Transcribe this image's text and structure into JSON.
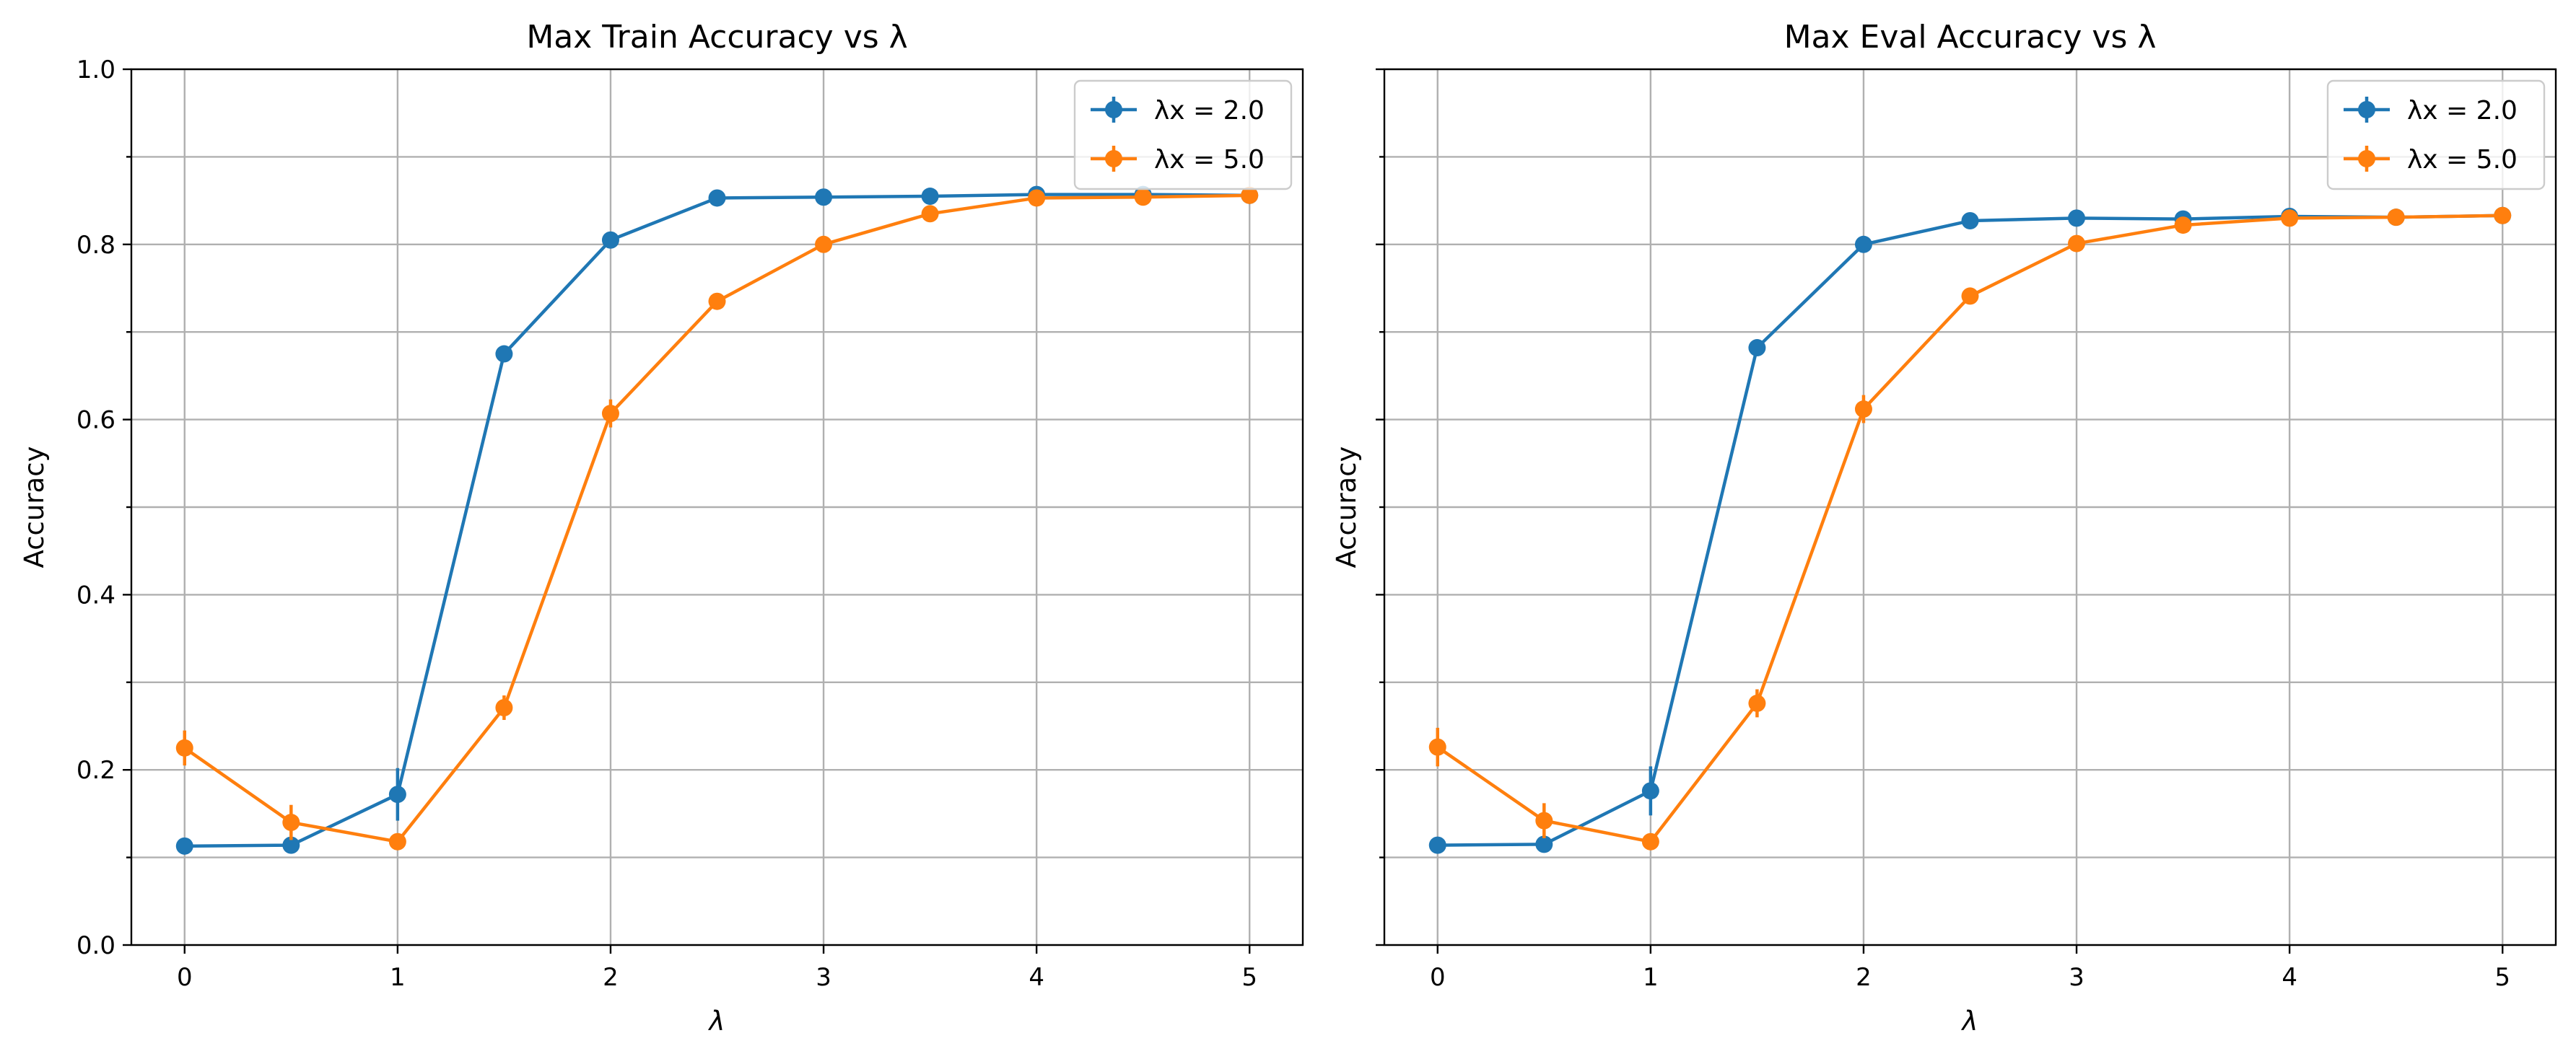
{
  "chart_data": [
    {
      "type": "line",
      "title": "Max Train Accuracy vs λ",
      "xlabel": "λ",
      "ylabel": "Accuracy",
      "xlim": [
        -0.25,
        5.25
      ],
      "ylim": [
        0.0,
        1.0
      ],
      "xticks": [
        "0",
        "1",
        "2",
        "3",
        "4",
        "5"
      ],
      "yticks": [
        "0.0",
        "0.2",
        "0.4",
        "0.6",
        "0.8",
        "1.0"
      ],
      "grid": true,
      "legend": "top-right",
      "x": [
        0,
        0.5,
        1,
        1.5,
        2,
        2.5,
        3,
        3.5,
        4,
        4.5,
        5
      ],
      "series": [
        {
          "name": "λx = 2.0",
          "color": "#1f77b4",
          "values": [
            0.113,
            0.114,
            0.172,
            0.675,
            0.805,
            0.853,
            0.854,
            0.855,
            0.857,
            0.857,
            0.856
          ],
          "err": [
            0.004,
            0.004,
            0.03,
            0.008,
            0.005,
            0.003,
            0.003,
            0.003,
            0.003,
            0.003,
            0.003
          ]
        },
        {
          "name": "λx = 5.0",
          "color": "#ff7f0e",
          "values": [
            0.225,
            0.14,
            0.118,
            0.271,
            0.607,
            0.735,
            0.8,
            0.835,
            0.853,
            0.854,
            0.856
          ],
          "err": [
            0.02,
            0.02,
            0.006,
            0.014,
            0.016,
            0.006,
            0.004,
            0.003,
            0.003,
            0.003,
            0.003
          ]
        }
      ]
    },
    {
      "type": "line",
      "title": "Max Eval Accuracy vs λ",
      "xlabel": "λ",
      "ylabel": "Accuracy",
      "xlim": [
        -0.25,
        5.25
      ],
      "ylim": [
        0.0,
        1.0
      ],
      "xticks": [
        "0",
        "1",
        "2",
        "3",
        "4",
        "5"
      ],
      "yticks": [
        "0.0",
        "0.2",
        "0.4",
        "0.6",
        "0.8",
        "1.0"
      ],
      "grid": true,
      "legend": "top-right",
      "x": [
        0,
        0.5,
        1,
        1.5,
        2,
        2.5,
        3,
        3.5,
        4,
        4.5,
        5
      ],
      "series": [
        {
          "name": "λx = 2.0",
          "color": "#1f77b4",
          "values": [
            0.114,
            0.115,
            0.176,
            0.682,
            0.8,
            0.827,
            0.83,
            0.829,
            0.832,
            0.831,
            0.833
          ],
          "err": [
            0.004,
            0.004,
            0.028,
            0.008,
            0.005,
            0.003,
            0.003,
            0.003,
            0.003,
            0.003,
            0.003
          ]
        },
        {
          "name": "λx = 5.0",
          "color": "#ff7f0e",
          "values": [
            0.226,
            0.142,
            0.118,
            0.276,
            0.612,
            0.741,
            0.801,
            0.822,
            0.83,
            0.831,
            0.833
          ],
          "err": [
            0.022,
            0.02,
            0.006,
            0.016,
            0.016,
            0.006,
            0.004,
            0.003,
            0.003,
            0.003,
            0.003
          ]
        }
      ]
    }
  ]
}
